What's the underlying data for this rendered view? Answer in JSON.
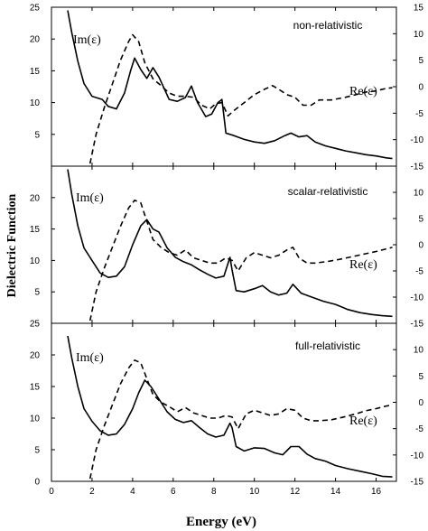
{
  "figure": {
    "xlabel": "Energy (eV)",
    "ylabel": "Dielectric Function"
  },
  "chart_data": [
    {
      "type": "line",
      "panel_label": "non-relativistic",
      "xlim": [
        0,
        17
      ],
      "ylim_left": [
        0,
        25
      ],
      "ylim_right": [
        -15,
        15
      ],
      "x_ticks": [
        0,
        2,
        4,
        6,
        8,
        10,
        12,
        14,
        16
      ],
      "y_ticks_left": [
        5,
        10,
        15,
        20,
        25
      ],
      "y_ticks_right": [
        -15,
        -10,
        -5,
        0,
        5,
        10,
        15
      ],
      "series": [
        {
          "name": "Im(ε)",
          "label_pos": "upper-left",
          "axis": "left",
          "style": "solid",
          "x": [
            0.8,
            1.0,
            1.3,
            1.6,
            2.0,
            2.5,
            2.8,
            3.2,
            3.6,
            3.9,
            4.1,
            4.4,
            4.7,
            5.0,
            5.3,
            5.8,
            6.2,
            6.6,
            6.9,
            7.2,
            7.6,
            7.9,
            8.2,
            8.4,
            8.6,
            9.0,
            9.5,
            10.0,
            10.5,
            11.0,
            11.5,
            11.8,
            12.2,
            12.6,
            13.0,
            13.5,
            14.0,
            14.5,
            15.0,
            15.5,
            16.0,
            16.5,
            16.8
          ],
          "y": [
            24.5,
            21.0,
            16.5,
            13.0,
            11.0,
            10.5,
            9.4,
            9.0,
            11.5,
            15.0,
            17.0,
            15.2,
            13.8,
            15.5,
            14.0,
            10.5,
            10.2,
            10.8,
            12.6,
            10.0,
            7.8,
            8.2,
            10.0,
            10.5,
            5.2,
            4.8,
            4.2,
            3.8,
            3.6,
            4.0,
            4.8,
            5.2,
            4.6,
            4.8,
            3.8,
            3.2,
            2.8,
            2.4,
            2.1,
            1.8,
            1.6,
            1.3,
            1.2
          ]
        },
        {
          "name": "Re(ε)",
          "label_pos": "right",
          "axis": "right",
          "style": "dashed",
          "x": [
            1.9,
            2.2,
            2.6,
            3.0,
            3.4,
            3.8,
            4.0,
            4.3,
            4.6,
            5.0,
            5.4,
            5.8,
            6.2,
            6.6,
            7.0,
            7.4,
            7.8,
            8.1,
            8.4,
            8.7,
            9.0,
            9.5,
            10.0,
            10.5,
            10.9,
            11.2,
            11.6,
            12.0,
            12.4,
            12.8,
            13.2,
            13.8,
            14.5,
            15.0,
            15.5,
            16.0,
            16.5,
            16.8
          ],
          "y": [
            -14.5,
            -9.0,
            -4.0,
            0.5,
            5.0,
            8.5,
            9.8,
            8.5,
            4.5,
            1.5,
            0.2,
            -1.2,
            -1.8,
            -1.8,
            -2.0,
            -3.5,
            -4.2,
            -3.2,
            -3.0,
            -5.5,
            -4.5,
            -3.0,
            -1.5,
            -0.5,
            0.2,
            -0.5,
            -1.5,
            -2.0,
            -3.5,
            -3.5,
            -2.5,
            -2.5,
            -2.0,
            -1.5,
            -1.0,
            -0.8,
            -0.3,
            -0.2
          ]
        }
      ]
    },
    {
      "type": "line",
      "panel_label": "scalar-relativistic",
      "xlim": [
        0,
        17
      ],
      "ylim_left": [
        0,
        25
      ],
      "ylim_right": [
        -15,
        15
      ],
      "x_ticks": [
        0,
        2,
        4,
        6,
        8,
        10,
        12,
        14,
        16
      ],
      "y_ticks_left": [
        5,
        10,
        15,
        20
      ],
      "y_ticks_right": [
        -15,
        -10,
        -5,
        0,
        5,
        10
      ],
      "series": [
        {
          "name": "Im(ε)",
          "label_pos": "upper-left",
          "axis": "left",
          "style": "solid",
          "x": [
            0.8,
            1.0,
            1.3,
            1.6,
            2.0,
            2.4,
            2.8,
            3.2,
            3.6,
            4.0,
            4.4,
            4.7,
            5.0,
            5.3,
            5.7,
            6.1,
            6.5,
            6.9,
            7.3,
            7.7,
            8.1,
            8.5,
            8.8,
            8.9,
            9.1,
            9.5,
            10.0,
            10.4,
            10.8,
            11.2,
            11.6,
            11.9,
            12.3,
            12.8,
            13.4,
            14.0,
            14.6,
            15.2,
            15.8,
            16.3,
            16.8
          ],
          "y": [
            24.5,
            20.5,
            15.5,
            12.0,
            10.0,
            8.0,
            7.3,
            7.5,
            9.0,
            12.5,
            15.5,
            16.5,
            15.0,
            14.5,
            12.0,
            10.5,
            9.8,
            9.3,
            8.5,
            7.8,
            7.2,
            7.5,
            10.5,
            8.5,
            5.2,
            5.0,
            5.5,
            6.0,
            5.0,
            4.5,
            4.8,
            6.2,
            4.8,
            4.2,
            3.5,
            3.0,
            2.2,
            1.7,
            1.4,
            1.2,
            1.1
          ]
        },
        {
          "name": "Re(ε)",
          "label_pos": "right",
          "axis": "right",
          "style": "dashed",
          "x": [
            1.9,
            2.2,
            2.6,
            3.0,
            3.4,
            3.8,
            4.1,
            4.4,
            4.7,
            5.0,
            5.4,
            5.8,
            6.2,
            6.6,
            7.0,
            7.4,
            7.8,
            8.2,
            8.6,
            8.9,
            9.2,
            9.6,
            10.0,
            10.4,
            10.8,
            11.2,
            11.6,
            11.9,
            12.2,
            12.6,
            13.0,
            13.6,
            14.2,
            14.8,
            15.4,
            16.0,
            16.5,
            16.8
          ],
          "y": [
            -14.5,
            -9.0,
            -4.5,
            -0.5,
            3.5,
            7.0,
            8.5,
            8.0,
            4.5,
            1.0,
            -0.5,
            -1.5,
            -2.0,
            -1.0,
            -2.5,
            -3.0,
            -3.5,
            -3.5,
            -2.5,
            -3.0,
            -5.0,
            -2.5,
            -1.5,
            -2.0,
            -2.5,
            -2.0,
            -1.0,
            -0.5,
            -2.5,
            -3.5,
            -3.5,
            -3.2,
            -2.8,
            -2.3,
            -1.8,
            -1.3,
            -0.8,
            -0.5
          ]
        }
      ]
    },
    {
      "type": "line",
      "panel_label": "full-relativistic",
      "xlim": [
        0,
        17
      ],
      "ylim_left": [
        0,
        25
      ],
      "ylim_right": [
        -15,
        15
      ],
      "x_ticks": [
        0,
        2,
        4,
        6,
        8,
        10,
        12,
        14,
        16
      ],
      "y_ticks_left": [
        0,
        5,
        10,
        15,
        20,
        25
      ],
      "y_ticks_right": [
        -15,
        -10,
        -5,
        0,
        5,
        10
      ],
      "series": [
        {
          "name": "Im(ε)",
          "label_pos": "upper-left",
          "axis": "left",
          "style": "solid",
          "x": [
            0.8,
            1.0,
            1.3,
            1.6,
            2.0,
            2.4,
            2.8,
            3.2,
            3.6,
            4.0,
            4.3,
            4.6,
            4.9,
            5.3,
            5.7,
            6.1,
            6.5,
            6.9,
            7.3,
            7.7,
            8.1,
            8.5,
            8.8,
            8.9,
            9.1,
            9.5,
            10.0,
            10.5,
            11.0,
            11.4,
            11.8,
            12.2,
            12.6,
            13.0,
            13.5,
            14.0,
            14.6,
            15.2,
            15.8,
            16.3,
            16.8
          ],
          "y": [
            23.0,
            19.5,
            15.0,
            11.5,
            9.5,
            8.0,
            7.3,
            7.5,
            9.0,
            11.5,
            14.0,
            16.0,
            15.0,
            13.0,
            11.0,
            9.8,
            9.3,
            9.6,
            8.5,
            7.5,
            7.0,
            7.3,
            9.2,
            8.5,
            5.5,
            4.8,
            5.3,
            5.2,
            4.5,
            4.2,
            5.5,
            5.5,
            4.3,
            3.6,
            3.2,
            2.5,
            2.0,
            1.6,
            1.2,
            0.8,
            0.7
          ]
        },
        {
          "name": "Re(ε)",
          "label_pos": "right",
          "axis": "right",
          "style": "dashed",
          "x": [
            1.9,
            2.2,
            2.6,
            3.0,
            3.4,
            3.8,
            4.1,
            4.4,
            4.7,
            5.0,
            5.4,
            5.8,
            6.2,
            6.6,
            7.0,
            7.4,
            7.8,
            8.2,
            8.6,
            8.9,
            9.2,
            9.6,
            10.0,
            10.4,
            10.8,
            11.2,
            11.6,
            12.0,
            12.4,
            12.8,
            13.2,
            13.8,
            14.4,
            15.0,
            15.5,
            16.0,
            16.5,
            16.8
          ],
          "y": [
            -14.5,
            -9.0,
            -4.5,
            -0.5,
            3.5,
            6.5,
            8.0,
            7.5,
            4.5,
            1.5,
            0.0,
            -0.8,
            -1.8,
            -1.0,
            -2.0,
            -2.5,
            -3.0,
            -3.0,
            -2.5,
            -2.8,
            -5.0,
            -2.2,
            -1.5,
            -2.0,
            -2.5,
            -2.2,
            -1.2,
            -1.5,
            -3.0,
            -3.5,
            -3.5,
            -3.3,
            -2.8,
            -2.2,
            -1.6,
            -1.2,
            -0.7,
            -0.5
          ]
        }
      ]
    }
  ]
}
